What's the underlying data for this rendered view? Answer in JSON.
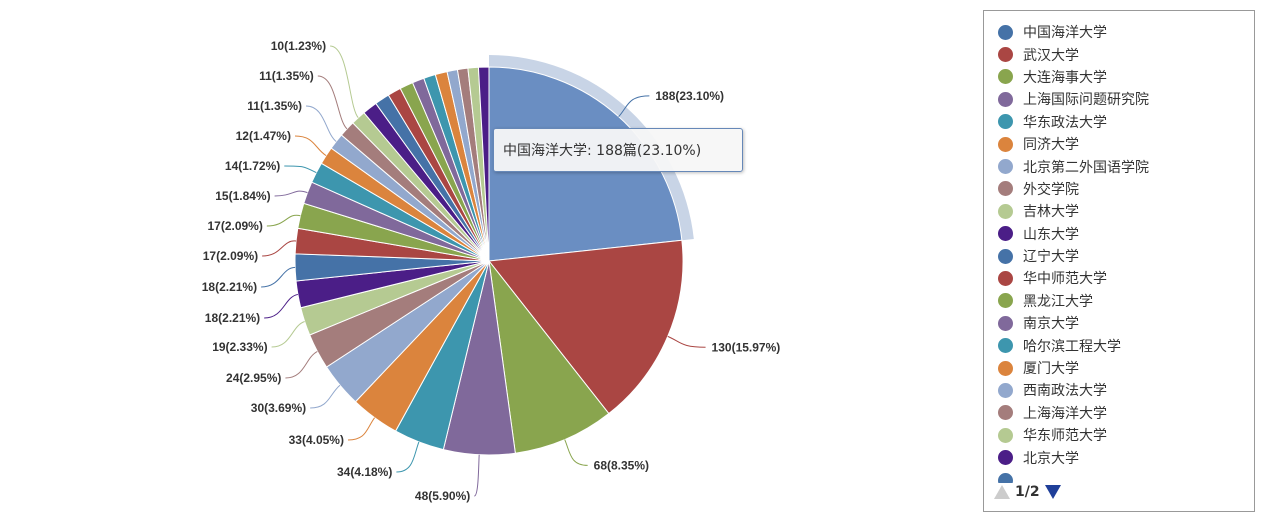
{
  "chart_data": {
    "type": "pie",
    "title": "",
    "unit": "篇",
    "series": [
      {
        "name": "中国海洋大学",
        "value": 188,
        "percent": "23.10%",
        "color": "#4572A7"
      },
      {
        "name": "武汉大学",
        "value": 130,
        "percent": "15.97%",
        "color": "#AA4643"
      },
      {
        "name": "大连海事大学",
        "value": 68,
        "percent": "8.35%",
        "color": "#89A54E"
      },
      {
        "name": "上海国际问题研究院",
        "value": 48,
        "percent": "5.90%",
        "color": "#80699B"
      },
      {
        "name": "华东政法大学",
        "value": 34,
        "percent": "4.18%",
        "color": "#3D96AE"
      },
      {
        "name": "同济大学",
        "value": 33,
        "percent": "4.05%",
        "color": "#DB843D"
      },
      {
        "name": "北京第二外国语学院",
        "value": 30,
        "percent": "3.69%",
        "color": "#92A8CD"
      },
      {
        "name": "外交学院",
        "value": 24,
        "percent": "2.95%",
        "color": "#A47D7C"
      },
      {
        "name": "吉林大学",
        "value": 19,
        "percent": "2.33%",
        "color": "#B5CA92"
      },
      {
        "name": "山东大学",
        "value": 18,
        "percent": "2.21%",
        "color": "#4B1E87"
      },
      {
        "name": "辽宁大学",
        "value": 18,
        "percent": "2.21%",
        "color": "#4572A7"
      },
      {
        "name": "华中师范大学",
        "value": 17,
        "percent": "2.09%",
        "color": "#AA4643"
      },
      {
        "name": "黑龙江大学",
        "value": 17,
        "percent": "2.09%",
        "color": "#89A54E"
      },
      {
        "name": "南京大学",
        "value": 15,
        "percent": "1.84%",
        "color": "#80699B"
      },
      {
        "name": "哈尔滨工程大学",
        "value": 14,
        "percent": "1.72%",
        "color": "#3D96AE"
      },
      {
        "name": "厦门大学",
        "value": 12,
        "percent": "1.47%",
        "color": "#DB843D"
      },
      {
        "name": "西南政法大学",
        "value": 11,
        "percent": "1.35%",
        "color": "#92A8CD"
      },
      {
        "name": "上海海洋大学",
        "value": 11,
        "percent": "1.35%",
        "color": "#A47D7C"
      },
      {
        "name": "华东师范大学",
        "value": 10,
        "percent": "1.23%",
        "color": "#B5CA92"
      },
      {
        "name": "北京大学",
        "value": 10,
        "percent": "1.23%",
        "color": "#4B1E87"
      },
      {
        "name": "",
        "value": 10,
        "percent": "1.23%",
        "color": "#4572A7"
      },
      {
        "name": "",
        "value": 9,
        "percent": "1.11%",
        "color": "#AA4643"
      },
      {
        "name": "",
        "value": 9,
        "percent": "1.11%",
        "color": "#89A54E"
      },
      {
        "name": "",
        "value": 8,
        "percent": "0.98%",
        "color": "#80699B"
      },
      {
        "name": "",
        "value": 8,
        "percent": "0.98%",
        "color": "#3D96AE"
      },
      {
        "name": "",
        "value": 8,
        "percent": "0.98%",
        "color": "#DB843D"
      },
      {
        "name": "",
        "value": 7,
        "percent": "0.86%",
        "color": "#92A8CD"
      },
      {
        "name": "",
        "value": 7,
        "percent": "0.86%",
        "color": "#A47D7C"
      },
      {
        "name": "",
        "value": 7,
        "percent": "0.86%",
        "color": "#B5CA92"
      },
      {
        "name": "",
        "value": 7,
        "percent": "0.86%",
        "color": "#4B1E87"
      }
    ],
    "data_labels": [
      "188(23.10%)",
      "130(15.97%)",
      "68(8.35%)",
      "48(5.90%)",
      "34(4.18%)",
      "33(4.05%)",
      "30(3.69%)",
      "24(2.95%)",
      "19(2.33%)",
      "18(2.21%)",
      "18(2.21%)",
      "17(2.09%)",
      "17(2.09%)",
      "15(1.84%)",
      "14(1.72%)",
      "12(1.47%)",
      "11(1.35%)",
      "11(1.35%)",
      "10(1.23%)"
    ],
    "highlighted_index": 0,
    "legend_position": "right"
  },
  "tooltip": {
    "text": "中国海洋大学: 188篇(23.10%)"
  },
  "legend": {
    "items": [
      {
        "label": "中国海洋大学",
        "color": "#4572A7"
      },
      {
        "label": "武汉大学",
        "color": "#AA4643"
      },
      {
        "label": "大连海事大学",
        "color": "#89A54E"
      },
      {
        "label": "上海国际问题研究院",
        "color": "#80699B"
      },
      {
        "label": "华东政法大学",
        "color": "#3D96AE"
      },
      {
        "label": "同济大学",
        "color": "#DB843D"
      },
      {
        "label": "北京第二外国语学院",
        "color": "#92A8CD"
      },
      {
        "label": "外交学院",
        "color": "#A47D7C"
      },
      {
        "label": "吉林大学",
        "color": "#B5CA92"
      },
      {
        "label": "山东大学",
        "color": "#4B1E87"
      },
      {
        "label": "辽宁大学",
        "color": "#4572A7"
      },
      {
        "label": "华中师范大学",
        "color": "#AA4643"
      },
      {
        "label": "黑龙江大学",
        "color": "#89A54E"
      },
      {
        "label": "南京大学",
        "color": "#80699B"
      },
      {
        "label": "哈尔滨工程大学",
        "color": "#3D96AE"
      },
      {
        "label": "厦门大学",
        "color": "#DB843D"
      },
      {
        "label": "西南政法大学",
        "color": "#92A8CD"
      },
      {
        "label": "上海海洋大学",
        "color": "#A47D7C"
      },
      {
        "label": "华东师范大学",
        "color": "#B5CA92"
      },
      {
        "label": "北京大学",
        "color": "#4B1E87"
      },
      {
        "label": "",
        "color": "#4572A7"
      }
    ],
    "page_text": "1/2",
    "prev_icon": "triangle-up-icon",
    "next_icon": "triangle-down-icon"
  }
}
